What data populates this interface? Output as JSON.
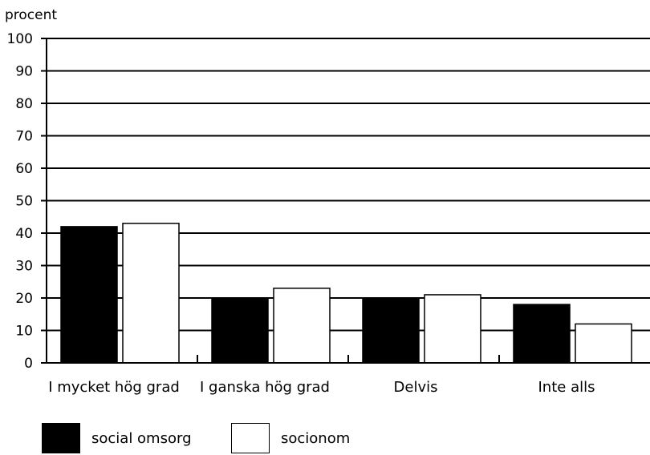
{
  "chart_data": {
    "type": "bar",
    "title": "",
    "ylabel": "procent",
    "xlabel": "",
    "categories": [
      "I mycket hög grad",
      "I ganska hög grad",
      "Delvis",
      "Inte alls"
    ],
    "series": [
      {
        "name": "social omsorg",
        "values": [
          42,
          20,
          20,
          18
        ],
        "color": "#000000"
      },
      {
        "name": "socionom",
        "values": [
          43,
          23,
          21,
          12
        ],
        "color": "#ffffff"
      }
    ],
    "ylim": [
      0,
      100
    ],
    "yticks": [
      0,
      10,
      20,
      30,
      40,
      50,
      60,
      70,
      80,
      90,
      100
    ],
    "grid": true,
    "legend_position": "bottom-left"
  }
}
